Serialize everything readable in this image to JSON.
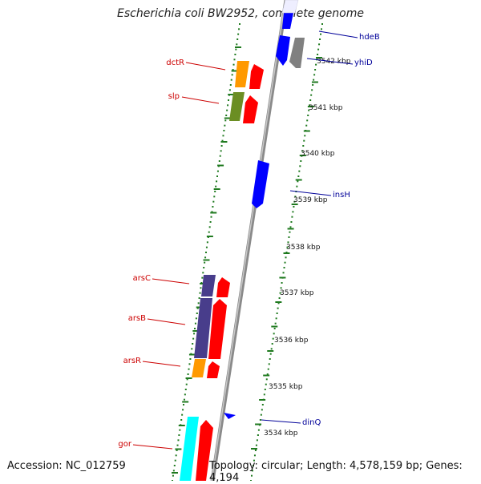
{
  "title": "Escherichia coli BW2952, complete genome",
  "accession": "Accession: NC_012759",
  "topology": "Topology: circular; Length: 4,578,159 bp; Genes: 4,194",
  "colors": {
    "backbone": "#8a8a8a",
    "ticks": "#1f7a1f",
    "label_left": "#cc0000",
    "label_right": "#000099",
    "gene_red": "#ff0000",
    "gene_orange": "#ff9900",
    "gene_olive": "#6b8e23",
    "gene_blue": "#0000ff",
    "gene_gray": "#808080",
    "gene_slate": "#483d8b",
    "gene_cyan": "#00ffff"
  },
  "scale_labels": [
    "3542 kbp",
    "3541 kbp",
    "3540 kbp",
    "3539 kbp",
    "3538 kbp",
    "3537 kbp",
    "3536 kbp",
    "3535 kbp",
    "3534 kbp"
  ],
  "gene_labels_left": [
    "dctR",
    "slp",
    "arsC",
    "arsB",
    "arsR",
    "gor"
  ],
  "gene_labels_right": [
    "hdeB",
    "yhiD",
    "insH",
    "dinQ"
  ]
}
